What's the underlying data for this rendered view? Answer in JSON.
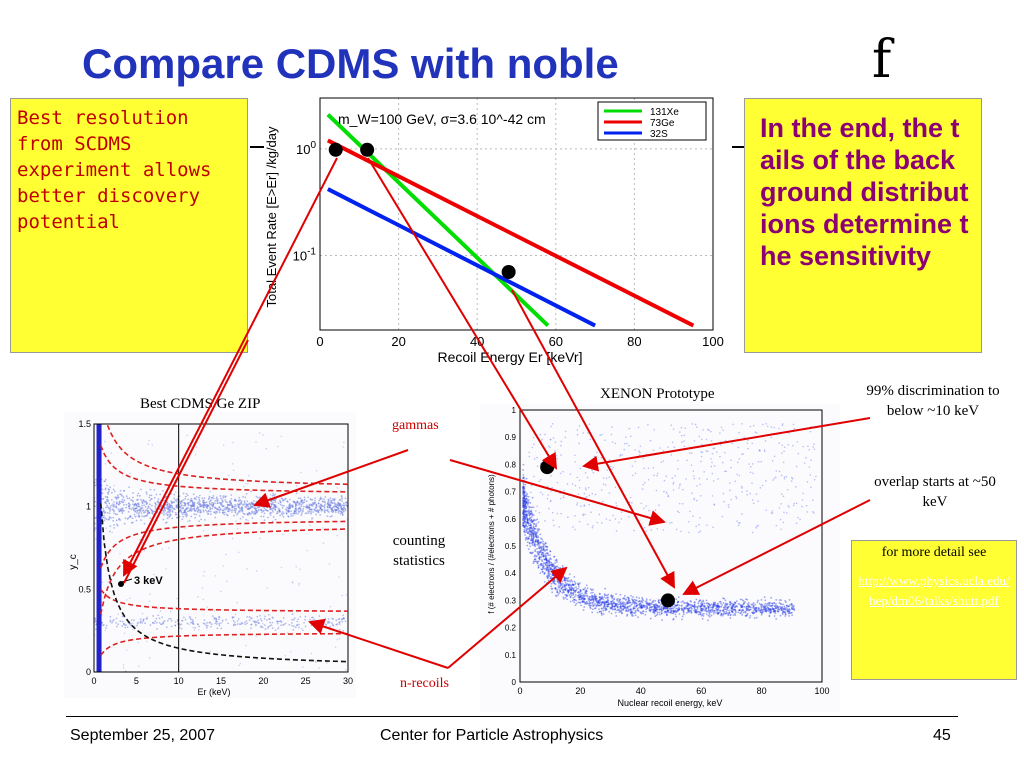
{
  "slide": {
    "title": "Compare CDMS with noble",
    "title_glyph": "f",
    "note_left": "Best resolution from SCDMS experiment allows better discovery potential",
    "note_right": "In the end, the tails of the background distributions determine the sensitivity",
    "annotation_discrimination": "99% discrimination to below ~10 keV",
    "annotation_overlap": "overlap starts at ~50 keV",
    "detail_label": "for more detail see",
    "detail_link": "http://www.physics.ucla.edu/hep/dm06/talks/shutt.pdf",
    "label_zip": "Best CDMS Ge ZIP",
    "label_xenon": "XENON Prototype",
    "label_gammas": "gammas",
    "label_counting": "counting statistics",
    "label_nrecoils": "n-recoils",
    "footer_date": "September 25, 2007",
    "footer_center": "Center for Particle Astrophysics",
    "footer_page": "45",
    "colors": {
      "title": "#2233bb",
      "note_bg": "#ffff33",
      "note_left_text": "#c00000",
      "note_right_text": "#8b0073",
      "arrow": "#e00000"
    }
  },
  "chart_data": [
    {
      "type": "line",
      "annotation": "m_W=100 GeV, σ=3.6 10^-42 cm",
      "xlabel": "Recoil Energy Er [keVr]",
      "ylabel": "Total Event Rate [E>Er] /kg/day",
      "xlim": [
        0,
        100
      ],
      "ylim": [
        0.02,
        3
      ],
      "yscale": "log",
      "x_ticks": [
        "0",
        "20",
        "40",
        "60",
        "80",
        "100"
      ],
      "y_ticks": [
        {
          "value": 1,
          "label": "10^0"
        },
        {
          "value": 0.1,
          "label": "10^-1"
        }
      ],
      "grid": true,
      "legend": "top-right",
      "series": [
        {
          "name": "131Xe",
          "color": "#00dd00",
          "x": [
            2,
            58
          ],
          "y": [
            2.1,
            0.022
          ]
        },
        {
          "name": "73Ge",
          "color": "#ee0000",
          "x": [
            2,
            95
          ],
          "y": [
            1.2,
            0.022
          ]
        },
        {
          "name": "32S",
          "color": "#0022ee",
          "x": [
            2,
            70
          ],
          "y": [
            0.42,
            0.022
          ]
        }
      ],
      "points": [
        {
          "x": 4,
          "y": 0.98
        },
        {
          "x": 12,
          "y": 0.98
        },
        {
          "x": 48,
          "y": 0.07
        }
      ]
    },
    {
      "type": "scatter",
      "title": "Best CDMS Ge ZIP",
      "xlabel": "Er (keV)",
      "ylabel": "y_c",
      "xlim": [
        0,
        30
      ],
      "ylim": [
        0,
        1.5
      ],
      "x_ticks": [
        "0",
        "5",
        "10",
        "15",
        "20",
        "25",
        "30"
      ],
      "y_ticks": [
        "0",
        "0.5",
        "1",
        "1.5"
      ],
      "annotation": "3 keV",
      "bands": [
        {
          "name": "gammas",
          "center": 1.0
        },
        {
          "name": "n-recoils",
          "center": 0.3
        }
      ],
      "cut_x": 10
    },
    {
      "type": "scatter",
      "title": "XENON Prototype",
      "xlabel": "Nuclear recoil energy, keV",
      "ylabel": "f (# electrons / (#electrons + # photons)",
      "xlim": [
        0,
        100
      ],
      "ylim": [
        0,
        1
      ],
      "x_ticks": [
        "0",
        "20",
        "40",
        "60",
        "80",
        "100"
      ],
      "y_ticks": [
        "0",
        "0.1",
        "0.2",
        "0.3",
        "0.4",
        "0.5",
        "0.6",
        "0.7",
        "0.8",
        "0.9",
        "1"
      ],
      "points": [
        {
          "x": 9,
          "y": 0.79
        },
        {
          "x": 49,
          "y": 0.3
        }
      ]
    }
  ]
}
